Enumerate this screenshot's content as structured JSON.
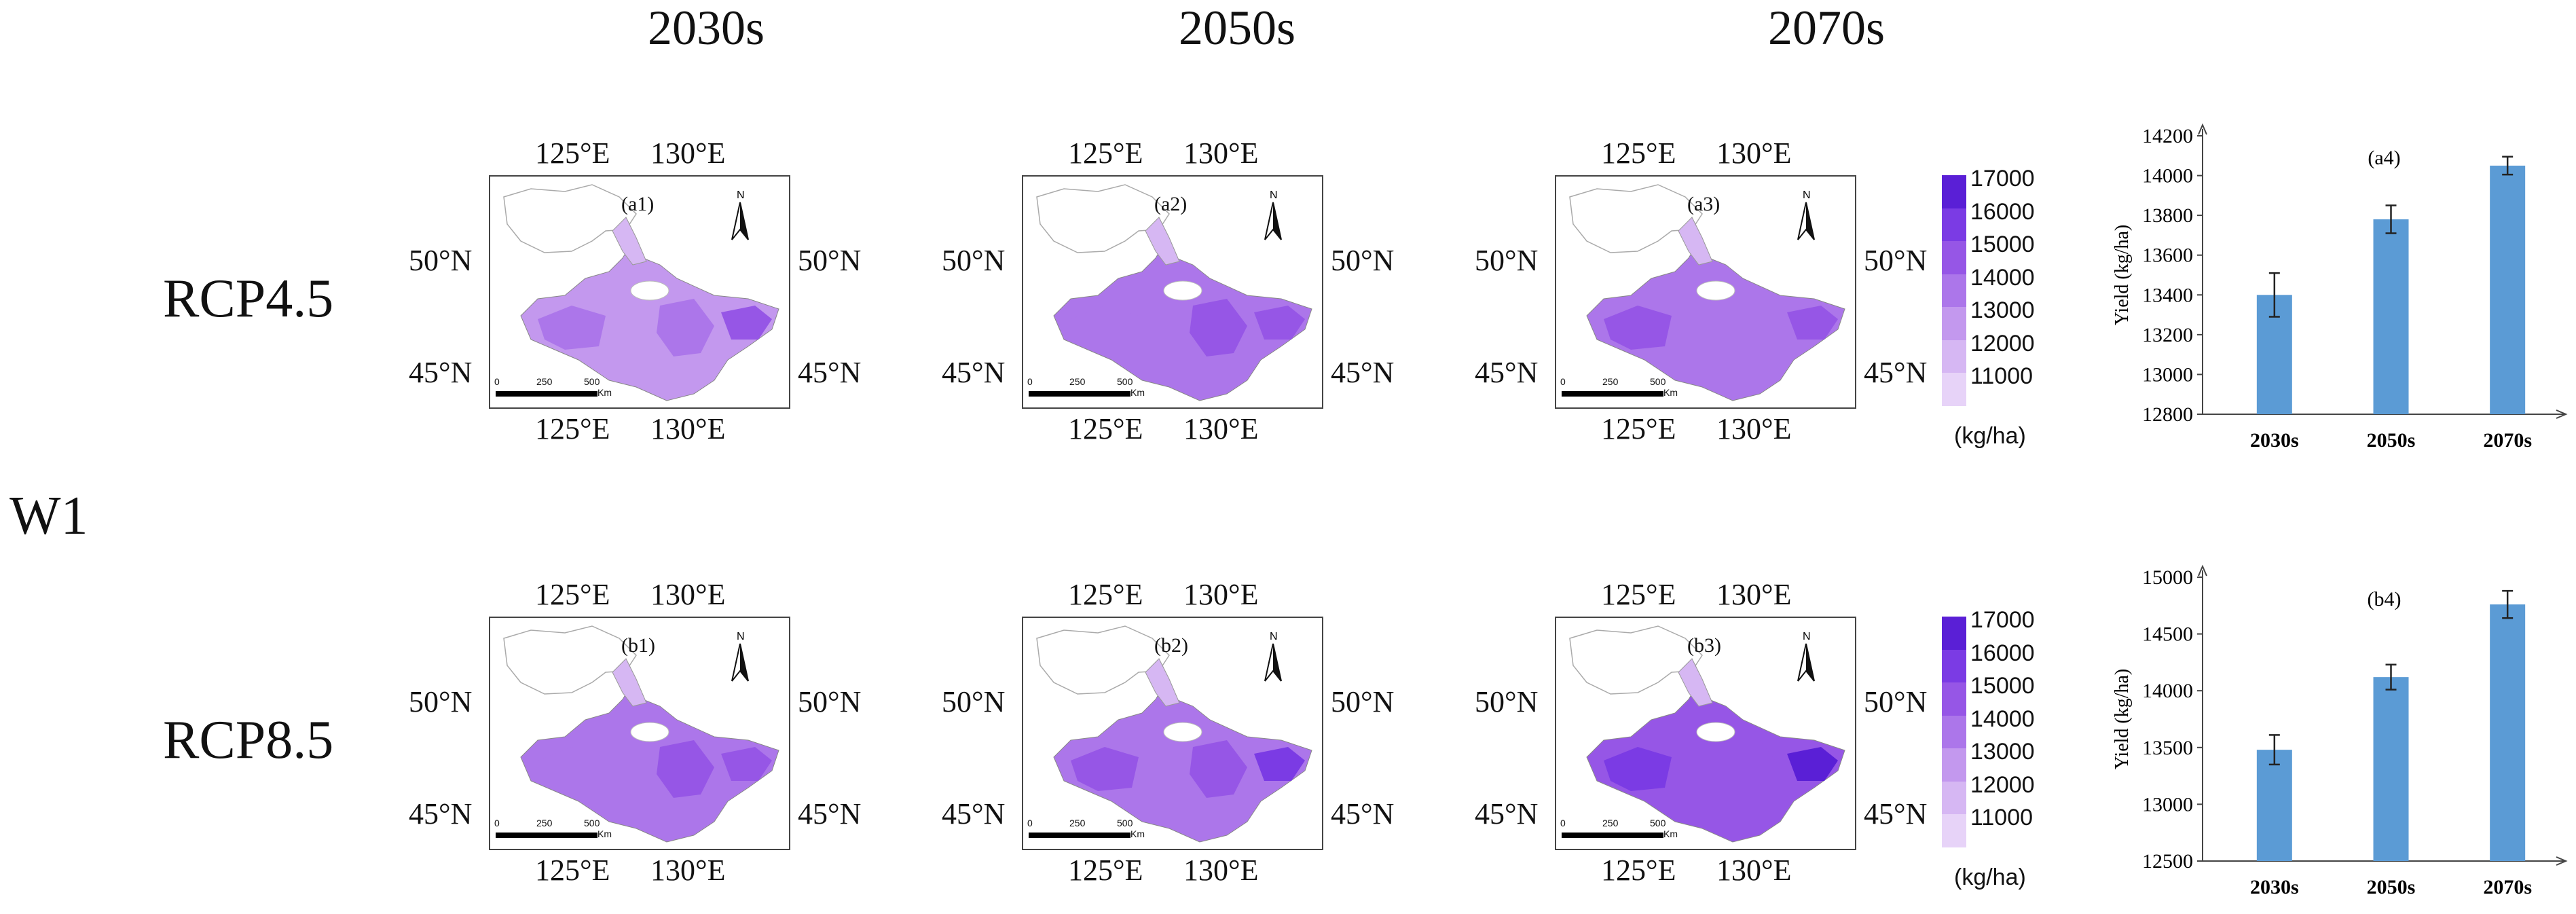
{
  "columns": [
    "2030s",
    "2050s",
    "2070s"
  ],
  "rows": [
    "RCP4.5",
    "RCP8.5"
  ],
  "group_label": "W1",
  "coords": {
    "lon1": "125°E",
    "lon2": "130°E",
    "lat1": "50°N",
    "lat2": "45°N"
  },
  "panel_tags": {
    "a1": "(a1)",
    "a2": "(a2)",
    "a3": "(a3)",
    "b1": "(b1)",
    "b2": "(b2)",
    "b3": "(b3)"
  },
  "scale_bar": {
    "ticks": [
      "0",
      "250",
      "500"
    ],
    "unit": "Km"
  },
  "north": "N",
  "legend": {
    "values": [
      "17000",
      "16000",
      "15000",
      "14000",
      "13000",
      "12000",
      "11000"
    ],
    "unit": "(kg/ha)",
    "colors": [
      "#5a1fd6",
      "#7b3be4",
      "#9656e6",
      "#ac76ea",
      "#c398ee",
      "#d6b7f3",
      "#e7d3f8"
    ]
  },
  "colors": {
    "bar": "#5b9bd5",
    "outline": "#aaaaaa"
  },
  "chart_data": [
    {
      "type": "bar",
      "tag": "(a4)",
      "categories": [
        "2030s",
        "2050s",
        "2070s"
      ],
      "values": [
        13400,
        13780,
        14050
      ],
      "errors": [
        110,
        70,
        45
      ],
      "ylabel": "Yield (kg/ha)",
      "ylim": [
        12800,
        14200
      ],
      "yticks": [
        "12800",
        "13000",
        "13200",
        "13400",
        "13600",
        "13800",
        "14000",
        "14200"
      ]
    },
    {
      "type": "bar",
      "tag": "(b4)",
      "categories": [
        "2030s",
        "2050s",
        "2070s"
      ],
      "values": [
        13480,
        14120,
        14760
      ],
      "errors": [
        130,
        110,
        120
      ],
      "ylabel": "Yield (kg/ha)",
      "ylim": [
        12500,
        15000
      ],
      "yticks": [
        "12500",
        "13000",
        "13500",
        "14000",
        "14500",
        "15000"
      ]
    }
  ]
}
